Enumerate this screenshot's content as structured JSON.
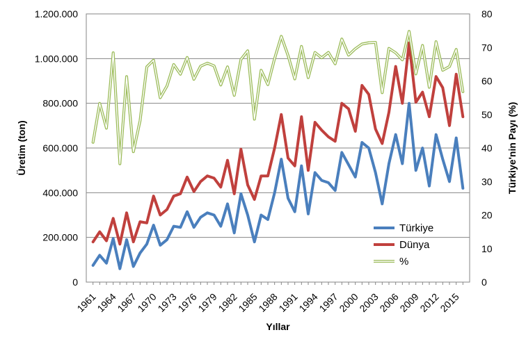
{
  "chart_data": {
    "type": "line",
    "title": "",
    "xlabel": "Yıllar",
    "ylabel": "Üretim (ton)",
    "y2label": "Türkiye'nin Payı (%)",
    "ylim": [
      0,
      1200000
    ],
    "y2lim": [
      0,
      80
    ],
    "grid": true,
    "legend_position": "bottom-right",
    "y_tick_labels": [
      "0",
      "200.000",
      "400.000",
      "600.000",
      "800.000",
      "1.000.000",
      "1.200.000"
    ],
    "y2_tick_labels": [
      "0",
      "10",
      "20",
      "30",
      "40",
      "50",
      "60",
      "70",
      "80"
    ],
    "x_tick_labels": [
      "1961",
      "1964",
      "1967",
      "1970",
      "1973",
      "1976",
      "1979",
      "1982",
      "1985",
      "1988",
      "1991",
      "1994",
      "1997",
      "2000",
      "2003",
      "2006",
      "2009",
      "2012",
      "2015"
    ],
    "x": [
      1961,
      1962,
      1963,
      1964,
      1965,
      1966,
      1967,
      1968,
      1969,
      1970,
      1971,
      1972,
      1973,
      1974,
      1975,
      1976,
      1977,
      1978,
      1979,
      1980,
      1981,
      1982,
      1983,
      1984,
      1985,
      1986,
      1987,
      1988,
      1989,
      1990,
      1991,
      1992,
      1993,
      1994,
      1995,
      1996,
      1997,
      1998,
      1999,
      2000,
      2001,
      2002,
      2003,
      2004,
      2005,
      2006,
      2007,
      2008,
      2009,
      2010,
      2011,
      2012,
      2013,
      2014,
      2015,
      2016
    ],
    "series": [
      {
        "name": "Türkiye",
        "color": "#4a7fbd",
        "axis": "left",
        "style": "solid",
        "values": [
          75000,
          120000,
          85000,
          195000,
          60000,
          190000,
          70000,
          130000,
          170000,
          255000,
          165000,
          190000,
          250000,
          245000,
          315000,
          245000,
          290000,
          310000,
          300000,
          250000,
          350000,
          220000,
          395000,
          300000,
          180000,
          300000,
          280000,
          400000,
          550000,
          375000,
          315000,
          520000,
          305000,
          490000,
          455000,
          445000,
          410000,
          580000,
          525000,
          470000,
          625000,
          600000,
          490000,
          350000,
          530000,
          660000,
          530000,
          800000,
          500000,
          600000,
          430000,
          660000,
          550000,
          450000,
          645000,
          420000
        ]
      },
      {
        "name": "Dünya",
        "color": "#c0403d",
        "axis": "left",
        "style": "solid",
        "values": [
          180000,
          225000,
          185000,
          285000,
          170000,
          310000,
          180000,
          270000,
          265000,
          385000,
          300000,
          325000,
          385000,
          395000,
          470000,
          405000,
          450000,
          475000,
          465000,
          425000,
          545000,
          395000,
          595000,
          435000,
          370000,
          475000,
          475000,
          600000,
          750000,
          555000,
          520000,
          740000,
          500000,
          715000,
          680000,
          650000,
          630000,
          800000,
          775000,
          675000,
          880000,
          840000,
          685000,
          620000,
          760000,
          965000,
          800000,
          1070000,
          805000,
          850000,
          740000,
          920000,
          870000,
          700000,
          930000,
          740000
        ]
      },
      {
        "name": "%",
        "color": "#9bbb59",
        "axis": "right",
        "style": "double",
        "values": [
          41.7,
          53.3,
          45.9,
          68.4,
          35.3,
          61.3,
          38.9,
          48.1,
          64.2,
          66.2,
          55.0,
          58.5,
          64.9,
          62.0,
          67.0,
          60.5,
          64.4,
          65.3,
          64.5,
          58.8,
          64.2,
          55.7,
          66.4,
          69.0,
          48.6,
          63.2,
          58.9,
          66.7,
          73.3,
          67.6,
          60.6,
          70.3,
          61.0,
          68.5,
          66.9,
          68.5,
          65.1,
          72.5,
          67.7,
          69.6,
          71.0,
          71.4,
          71.5,
          56.5,
          69.7,
          68.4,
          66.3,
          74.8,
          62.1,
          70.6,
          58.1,
          71.7,
          63.2,
          64.3,
          69.4,
          56.8
        ]
      }
    ]
  }
}
